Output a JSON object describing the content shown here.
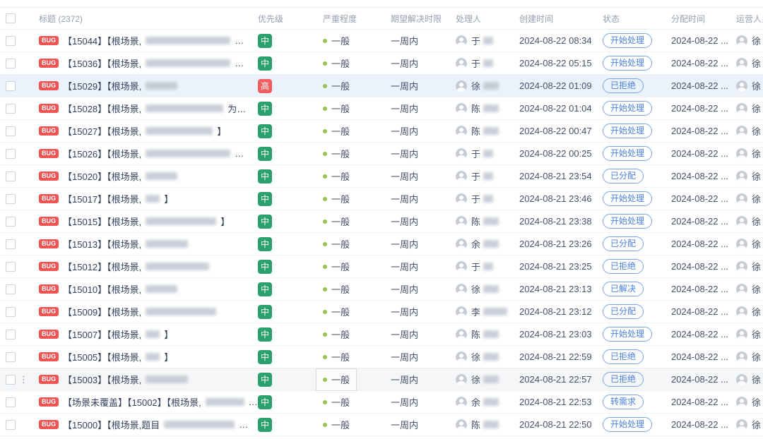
{
  "header": {
    "columns": {
      "title": "标题",
      "title_count": "(2372)",
      "priority": "优先级",
      "severity": "严重程度",
      "due": "期望解决时限",
      "handler": "处理人",
      "created": "创建时间",
      "status": "状态",
      "assigned": "分配时间",
      "operator": "运营人员"
    }
  },
  "colors": {
    "priority_medium": "#2aa06d",
    "priority_high": "#f25e5e",
    "bug_badge": "#f05452",
    "status_blue": "#4a7fe0",
    "selected_row": "#ebf2fb",
    "hover_row": "#f5f6f7",
    "severity_dot": "#93c54b"
  },
  "rows": [
    {
      "badge": "BUG",
      "title": "【15044】【根场景,",
      "blur": 120,
      "suffix": "…",
      "priority": "中",
      "priority_level": "medium",
      "severity": "一般",
      "due": "一周内",
      "handler": "于",
      "handler_blur": 14,
      "created": "2024-08-22 08:34",
      "status": "开始处理",
      "assigned": "2024-08-22 ...",
      "operator": "徐",
      "selected": false,
      "hovered": false
    },
    {
      "badge": "BUG",
      "title": "【15036】【根场景,",
      "blur": 120,
      "suffix": "…",
      "priority": "中",
      "priority_level": "medium",
      "severity": "一般",
      "due": "一周内",
      "handler": "于",
      "handler_blur": 14,
      "created": "2024-08-22 05:15",
      "status": "开始处理",
      "assigned": "2024-08-22 ...",
      "operator": "徐",
      "selected": false,
      "hovered": false
    },
    {
      "badge": "BUG",
      "title": "【15029】【根场景,",
      "blur": 45,
      "suffix": "",
      "priority": "高",
      "priority_level": "high",
      "severity": "一般",
      "due": "一周内",
      "handler": "徐",
      "handler_blur": 22,
      "created": "2024-08-22 01:09",
      "status": "已拒绝",
      "assigned": "2024-08-22 ...",
      "operator": "徐",
      "selected": true,
      "hovered": false
    },
    {
      "badge": "BUG",
      "title": "【15028】【根场景,",
      "blur": 110,
      "suffix": "为…",
      "priority": "中",
      "priority_level": "medium",
      "severity": "一般",
      "due": "一周内",
      "handler": "陈",
      "handler_blur": 22,
      "created": "2024-08-22 01:04",
      "status": "开始处理",
      "assigned": "2024-08-22 ...",
      "operator": "徐",
      "selected": false,
      "hovered": false
    },
    {
      "badge": "BUG",
      "title": "【15027】【根场景,",
      "blur": 95,
      "suffix": "】",
      "priority": "中",
      "priority_level": "medium",
      "severity": "一般",
      "due": "一周内",
      "handler": "陈",
      "handler_blur": 22,
      "created": "2024-08-22 00:47",
      "status": "开始处理",
      "assigned": "2024-08-22 ...",
      "operator": "徐",
      "selected": false,
      "hovered": false
    },
    {
      "badge": "BUG",
      "title": "【15026】【根场景,",
      "blur": 120,
      "suffix": "…",
      "priority": "中",
      "priority_level": "medium",
      "severity": "一般",
      "due": "一周内",
      "handler": "于",
      "handler_blur": 14,
      "created": "2024-08-22 00:25",
      "status": "开始处理",
      "assigned": "2024-08-22 ...",
      "operator": "徐",
      "selected": false,
      "hovered": false
    },
    {
      "badge": "BUG",
      "title": "【15020】【根场景,",
      "blur": 45,
      "suffix": "",
      "priority": "中",
      "priority_level": "medium",
      "severity": "一般",
      "due": "一周内",
      "handler": "于",
      "handler_blur": 14,
      "created": "2024-08-21 23:54",
      "status": "已分配",
      "assigned": "2024-08-22 ...",
      "operator": "徐",
      "selected": false,
      "hovered": false
    },
    {
      "badge": "BUG",
      "title": "【15017】【根场景,",
      "blur": 20,
      "suffix": "】",
      "priority": "中",
      "priority_level": "medium",
      "severity": "一般",
      "due": "一周内",
      "handler": "于",
      "handler_blur": 14,
      "created": "2024-08-21 23:46",
      "status": "开始处理",
      "assigned": "2024-08-22 ...",
      "operator": "徐",
      "selected": false,
      "hovered": false
    },
    {
      "badge": "BUG",
      "title": "【15015】【根场景,",
      "blur": 100,
      "suffix": "】",
      "priority": "中",
      "priority_level": "medium",
      "severity": "一般",
      "due": "一周内",
      "handler": "陈",
      "handler_blur": 22,
      "created": "2024-08-21 23:38",
      "status": "开始处理",
      "assigned": "2024-08-22 ...",
      "operator": "徐",
      "selected": false,
      "hovered": false
    },
    {
      "badge": "BUG",
      "title": "【15013】【根场景,",
      "blur": 60,
      "suffix": "",
      "priority": "中",
      "priority_level": "medium",
      "severity": "一般",
      "due": "一周内",
      "handler": "余",
      "handler_blur": 22,
      "created": "2024-08-21 23:26",
      "status": "已分配",
      "assigned": "2024-08-22 ...",
      "operator": "徐",
      "selected": false,
      "hovered": false
    },
    {
      "badge": "BUG",
      "title": "【15012】【根场景,",
      "blur": 90,
      "suffix": "",
      "priority": "中",
      "priority_level": "medium",
      "severity": "一般",
      "due": "一周内",
      "handler": "于",
      "handler_blur": 14,
      "created": "2024-08-21 23:25",
      "status": "已拒绝",
      "assigned": "2024-08-22 ...",
      "operator": "徐",
      "selected": false,
      "hovered": false
    },
    {
      "badge": "BUG",
      "title": "【15010】【根场景,",
      "blur": 45,
      "suffix": "",
      "priority": "中",
      "priority_level": "medium",
      "severity": "一般",
      "due": "一周内",
      "handler": "徐",
      "handler_blur": 22,
      "created": "2024-08-21 23:13",
      "status": "已解决",
      "assigned": "2024-08-22 ...",
      "operator": "徐",
      "selected": false,
      "hovered": false
    },
    {
      "badge": "BUG",
      "title": "【15009】【根场景,",
      "blur": 100,
      "suffix": "",
      "priority": "中",
      "priority_level": "medium",
      "severity": "一般",
      "due": "一周内",
      "handler": "李",
      "handler_blur": 34,
      "created": "2024-08-21 23:12",
      "status": "已分配",
      "assigned": "2024-08-22 ...",
      "operator": "徐",
      "selected": false,
      "hovered": false
    },
    {
      "badge": "BUG",
      "title": "【15007】【根场景,",
      "blur": 20,
      "suffix": "】",
      "priority": "中",
      "priority_level": "medium",
      "severity": "一般",
      "due": "一周内",
      "handler": "陈",
      "handler_blur": 22,
      "created": "2024-08-21 23:03",
      "status": "开始处理",
      "assigned": "2024-08-22 ...",
      "operator": "徐",
      "selected": false,
      "hovered": false
    },
    {
      "badge": "BUG",
      "title": "【15005】【根场景,",
      "blur": 20,
      "suffix": "】",
      "priority": "中",
      "priority_level": "medium",
      "severity": "一般",
      "due": "一周内",
      "handler": "徐",
      "handler_blur": 22,
      "created": "2024-08-21 22:59",
      "status": "已拒绝",
      "assigned": "2024-08-22 ...",
      "operator": "徐",
      "selected": false,
      "hovered": false
    },
    {
      "badge": "BUG",
      "title": "【15003】【根场景,",
      "blur": 60,
      "suffix": "",
      "priority": "中",
      "priority_level": "medium",
      "severity": "一般",
      "due": "一周内",
      "handler": "徐",
      "handler_blur": 22,
      "created": "2024-08-21 22:57",
      "status": "已拒绝",
      "assigned": "2024-08-22 ...",
      "operator": "徐",
      "selected": false,
      "hovered": true
    },
    {
      "badge": "BUG",
      "title": "【场景未覆盖】【15002】【根场景,",
      "blur": 55,
      "suffix": "…",
      "priority": "中",
      "priority_level": "medium",
      "severity": "一般",
      "due": "一周内",
      "handler": "余",
      "handler_blur": 22,
      "created": "2024-08-21 22:53",
      "status": "转需求",
      "assigned": "2024-08-22 ...",
      "operator": "徐",
      "selected": false,
      "hovered": false
    },
    {
      "badge": "BUG",
      "title": "【15000】【根场景,题目",
      "blur": 100,
      "suffix": "…",
      "priority": "中",
      "priority_level": "medium",
      "severity": "一般",
      "due": "一周内",
      "handler": "陈",
      "handler_blur": 22,
      "created": "2024-08-21 22:50",
      "status": "开始处理",
      "assigned": "2024-08-22 ...",
      "operator": "徐",
      "selected": false,
      "hovered": false
    }
  ]
}
